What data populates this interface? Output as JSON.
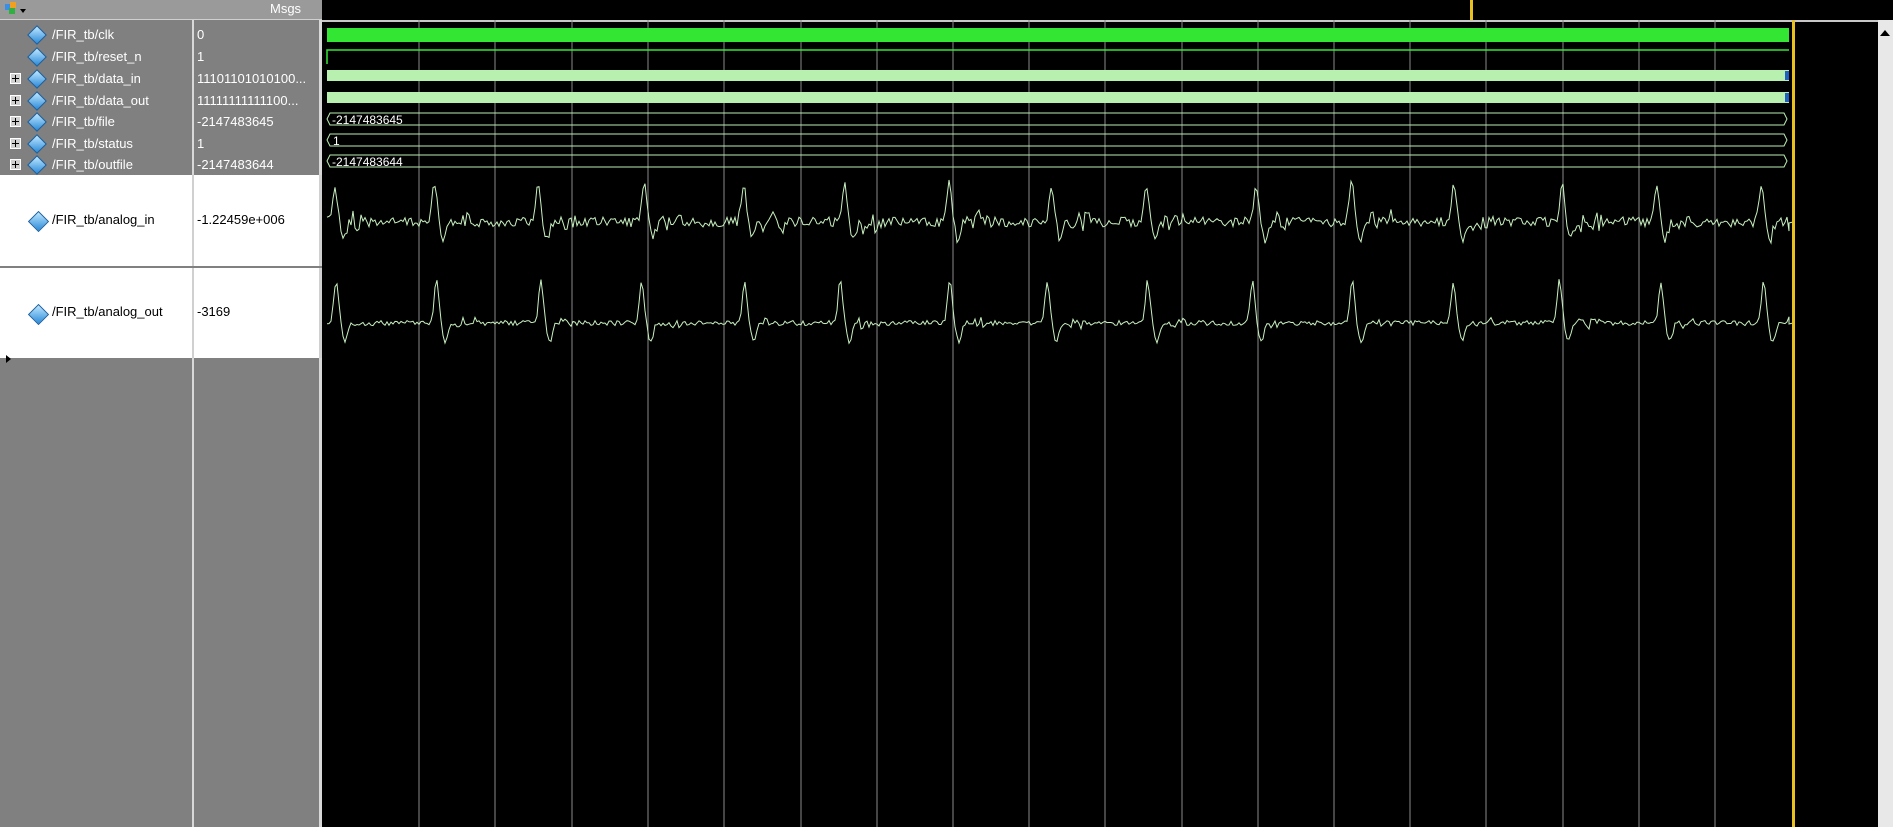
{
  "header": {
    "values_label": "Msgs"
  },
  "signals": [
    {
      "name": "/FIR_tb/clk",
      "value": "0",
      "expandable": false
    },
    {
      "name": "/FIR_tb/reset_n",
      "value": "1",
      "expandable": false
    },
    {
      "name": "/FIR_tb/data_in",
      "value": "11101101010100...",
      "expandable": true
    },
    {
      "name": "/FIR_tb/data_out",
      "value": "11111111111100...",
      "expandable": true
    },
    {
      "name": "/FIR_tb/file",
      "value": "-2147483645",
      "expandable": true
    },
    {
      "name": "/FIR_tb/status",
      "value": "1",
      "expandable": true
    },
    {
      "name": "/FIR_tb/outfile",
      "value": "-2147483644",
      "expandable": true
    }
  ],
  "analog": [
    {
      "name": "/FIR_tb/analog_in",
      "value": "-1.22459e+006"
    },
    {
      "name": "/FIR_tb/analog_out",
      "value": "-3169"
    }
  ],
  "bus_labels": {
    "file": "-2147483645",
    "status": "1",
    "outfile": "-2147483644"
  },
  "colors": {
    "wave_green": "#33e633",
    "bus_green": "#b8f0b0",
    "cursor": "#e8c020",
    "grid": "#9a9a9a"
  }
}
